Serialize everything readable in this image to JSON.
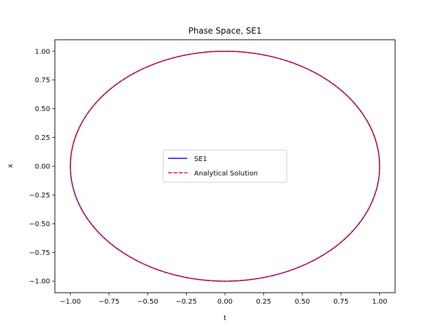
{
  "chart_data": {
    "type": "line",
    "title": "Phase Space, SE1",
    "xlabel": "t",
    "ylabel": "x",
    "xlim": [
      -1.1,
      1.1
    ],
    "ylim": [
      -1.1,
      1.1
    ],
    "xticks": [
      "−1.00",
      "−0.75",
      "−0.50",
      "−0.25",
      "0.00",
      "0.25",
      "0.50",
      "0.75",
      "1.00"
    ],
    "xtick_values": [
      -1.0,
      -0.75,
      -0.5,
      -0.25,
      0.0,
      0.25,
      0.5,
      0.75,
      1.0
    ],
    "yticks": [
      "−1.00",
      "−0.75",
      "−0.50",
      "−0.25",
      "0.00",
      "0.25",
      "0.50",
      "0.75",
      "1.00"
    ],
    "ytick_values": [
      -1.0,
      -0.75,
      -0.5,
      -0.25,
      0.0,
      0.25,
      0.5,
      0.75,
      1.0
    ],
    "grid": false,
    "legend_position": "center",
    "series": [
      {
        "name": "SE1",
        "color": "#0000ff",
        "style": "solid",
        "shape": "unit circle",
        "x": [
          1.0,
          0.707,
          0.0,
          -0.707,
          -1.0,
          -0.707,
          0.0,
          0.707,
          1.0
        ],
        "y": [
          0.0,
          0.707,
          1.0,
          0.707,
          0.0,
          -0.707,
          -1.0,
          -0.707,
          0.0
        ]
      },
      {
        "name": "Analytical Solution",
        "color": "#ff0000",
        "style": "dashed",
        "shape": "unit circle",
        "x": [
          1.0,
          0.707,
          0.0,
          -0.707,
          -1.0,
          -0.707,
          0.0,
          0.707,
          1.0
        ],
        "y": [
          0.0,
          0.707,
          1.0,
          0.707,
          0.0,
          -0.707,
          -1.0,
          -0.707,
          0.0
        ]
      }
    ]
  }
}
